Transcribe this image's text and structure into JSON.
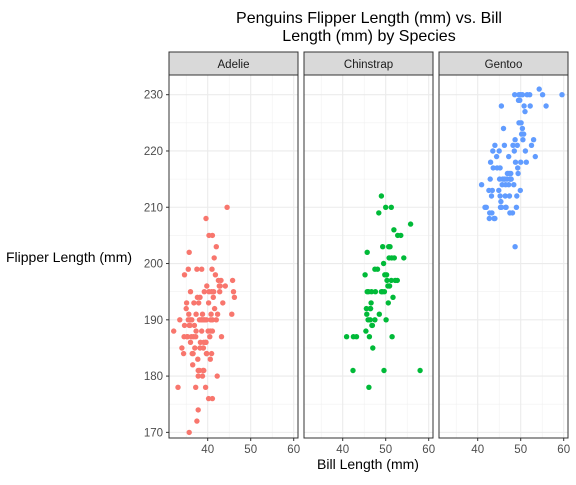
{
  "chart_data": {
    "type": "scatter",
    "title_lines": [
      "Penguins Flipper Length (mm) vs. Bill",
      "Length (mm) by Species"
    ],
    "xlabel": "Bill Length (mm)",
    "ylabel": "Flipper Length (mm)",
    "xlim": [
      31,
      61
    ],
    "ylim": [
      169,
      233.5
    ],
    "x_ticks": [
      40,
      50,
      60
    ],
    "y_ticks": [
      170,
      180,
      190,
      200,
      210,
      220,
      230
    ],
    "x_tick_labels": [
      "40",
      "50",
      "60"
    ],
    "y_tick_labels": [
      "170",
      "180",
      "190",
      "200",
      "210",
      "220",
      "230"
    ],
    "grid": true,
    "legend": "none",
    "facets": [
      {
        "name": "Adelie",
        "color": "#F8766D",
        "points": [
          [
            32.1,
            188
          ],
          [
            33.1,
            178
          ],
          [
            33.5,
            190
          ],
          [
            34.0,
            185
          ],
          [
            34.4,
            184
          ],
          [
            34.5,
            187
          ],
          [
            34.6,
            189
          ],
          [
            34.6,
            198
          ],
          [
            35.0,
            192
          ],
          [
            35.1,
            193
          ],
          [
            35.2,
            187
          ],
          [
            35.3,
            187
          ],
          [
            35.5,
            190
          ],
          [
            35.5,
            199
          ],
          [
            35.6,
            191
          ],
          [
            35.7,
            189
          ],
          [
            35.7,
            202
          ],
          [
            35.9,
            189
          ],
          [
            35.9,
            190
          ],
          [
            36.0,
            186
          ],
          [
            36.0,
            195
          ],
          [
            36.2,
            187
          ],
          [
            36.3,
            190
          ],
          [
            36.4,
            184
          ],
          [
            36.5,
            182
          ],
          [
            36.6,
            184
          ],
          [
            36.7,
            187
          ],
          [
            36.8,
            193
          ],
          [
            36.9,
            189
          ],
          [
            37.0,
            185
          ],
          [
            37.2,
            178
          ],
          [
            37.2,
            187
          ],
          [
            37.3,
            188
          ],
          [
            37.3,
            191
          ],
          [
            37.5,
            199
          ],
          [
            37.6,
            194
          ],
          [
            37.7,
            183
          ],
          [
            37.8,
            174
          ],
          [
            37.8,
            180
          ],
          [
            37.8,
            181
          ],
          [
            37.9,
            193
          ],
          [
            38.1,
            181
          ],
          [
            38.1,
            190
          ],
          [
            38.2,
            185
          ],
          [
            38.3,
            186
          ],
          [
            38.5,
            190
          ],
          [
            38.6,
            188
          ],
          [
            38.6,
            199
          ],
          [
            38.7,
            190
          ],
          [
            38.8,
            180
          ],
          [
            38.8,
            191
          ],
          [
            38.9,
            181
          ],
          [
            39.0,
            185
          ],
          [
            39.0,
            190
          ],
          [
            39.1,
            181
          ],
          [
            39.1,
            186
          ],
          [
            39.2,
            195
          ],
          [
            39.3,
            190
          ],
          [
            39.5,
            178
          ],
          [
            39.5,
            186
          ],
          [
            39.6,
            186
          ],
          [
            39.7,
            184
          ],
          [
            39.7,
            190
          ],
          [
            39.8,
            184
          ],
          [
            40.1,
            188
          ],
          [
            40.2,
            176
          ],
          [
            40.2,
            193
          ],
          [
            40.3,
            195
          ],
          [
            40.5,
            187
          ],
          [
            40.6,
            183
          ],
          [
            40.6,
            188
          ],
          [
            40.7,
            190
          ],
          [
            40.8,
            191
          ],
          [
            40.9,
            184
          ],
          [
            40.9,
            195
          ],
          [
            41.0,
            199
          ],
          [
            41.1,
            176
          ],
          [
            41.1,
            188
          ],
          [
            41.1,
            190
          ],
          [
            41.3,
            194
          ],
          [
            41.4,
            195
          ],
          [
            41.5,
            201
          ],
          [
            41.6,
            192
          ],
          [
            41.8,
            198
          ],
          [
            42.0,
            190
          ],
          [
            42.2,
            180
          ],
          [
            42.3,
            191
          ],
          [
            42.5,
            197
          ],
          [
            42.7,
            196
          ],
          [
            42.8,
            195
          ],
          [
            42.9,
            196
          ],
          [
            43.1,
            197
          ],
          [
            43.2,
            187
          ],
          [
            43.5,
            193
          ],
          [
            44.1,
            196
          ],
          [
            45.6,
            191
          ],
          [
            46.0,
            195
          ],
          [
            46.2,
            194
          ],
          [
            39.6,
            208
          ],
          [
            40.3,
            205
          ],
          [
            41.1,
            205
          ],
          [
            42.0,
            203
          ],
          [
            37.5,
            172
          ],
          [
            35.7,
            170
          ],
          [
            44.5,
            210
          ],
          [
            45.8,
            197
          ],
          [
            38.2,
            194
          ],
          [
            39.8,
            196
          ]
        ]
      },
      {
        "name": "Chinstrap",
        "color": "#00BA38",
        "points": [
          [
            40.9,
            187
          ],
          [
            42.4,
            181
          ],
          [
            42.5,
            187
          ],
          [
            43.2,
            187
          ],
          [
            45.2,
            198
          ],
          [
            45.4,
            188
          ],
          [
            45.5,
            192
          ],
          [
            45.6,
            191
          ],
          [
            45.7,
            195
          ],
          [
            45.9,
            190
          ],
          [
            46.0,
            195
          ],
          [
            46.1,
            178
          ],
          [
            46.2,
            187
          ],
          [
            46.4,
            190
          ],
          [
            46.5,
            192
          ],
          [
            46.6,
            193
          ],
          [
            46.7,
            195
          ],
          [
            46.8,
            189
          ],
          [
            46.9,
            189
          ],
          [
            47.0,
            185
          ],
          [
            47.5,
            199
          ],
          [
            47.6,
            195
          ],
          [
            48.1,
            199
          ],
          [
            48.5,
            191
          ],
          [
            49.0,
            195
          ],
          [
            49.2,
            195
          ],
          [
            49.3,
            203
          ],
          [
            49.5,
            200
          ],
          [
            49.6,
            181
          ],
          [
            49.7,
            195
          ],
          [
            49.8,
            198
          ],
          [
            50.1,
            190
          ],
          [
            50.2,
            198
          ],
          [
            50.3,
            197
          ],
          [
            50.5,
            196
          ],
          [
            50.6,
            193
          ],
          [
            50.7,
            203
          ],
          [
            50.8,
            201
          ],
          [
            50.9,
            196
          ],
          [
            51.0,
            203
          ],
          [
            51.3,
            197
          ],
          [
            51.4,
            201
          ],
          [
            51.5,
            187
          ],
          [
            51.7,
            194
          ],
          [
            51.9,
            206
          ],
          [
            52.0,
            201
          ],
          [
            52.2,
            197
          ],
          [
            52.7,
            197
          ],
          [
            52.8,
            205
          ],
          [
            53.5,
            205
          ],
          [
            54.2,
            201
          ],
          [
            55.8,
            207
          ],
          [
            58.0,
            181
          ],
          [
            45.7,
            202
          ],
          [
            46.4,
            192
          ],
          [
            47.5,
            190
          ],
          [
            48.4,
            209
          ],
          [
            49.0,
            212
          ],
          [
            50.0,
            210
          ],
          [
            51.3,
            210
          ]
        ]
      },
      {
        "name": "Gentoo",
        "color": "#619CFF",
        "points": [
          [
            40.9,
            214
          ],
          [
            41.7,
            210
          ],
          [
            42.0,
            210
          ],
          [
            42.6,
            213
          ],
          [
            42.7,
            208
          ],
          [
            42.8,
            209
          ],
          [
            42.9,
            215
          ],
          [
            43.2,
            212
          ],
          [
            43.3,
            209
          ],
          [
            43.4,
            213
          ],
          [
            43.5,
            220
          ],
          [
            43.6,
            217
          ],
          [
            43.8,
            208
          ],
          [
            44.0,
            208
          ],
          [
            44.4,
            219
          ],
          [
            44.5,
            217
          ],
          [
            44.9,
            213
          ],
          [
            45.0,
            220
          ],
          [
            45.1,
            215
          ],
          [
            45.2,
            212
          ],
          [
            45.3,
            210
          ],
          [
            45.4,
            211
          ],
          [
            45.5,
            210
          ],
          [
            45.7,
            214
          ],
          [
            45.8,
            215
          ],
          [
            46.1,
            215
          ],
          [
            46.2,
            221
          ],
          [
            46.3,
            215
          ],
          [
            46.4,
            212
          ],
          [
            46.5,
            210
          ],
          [
            46.6,
            210
          ],
          [
            46.8,
            215
          ],
          [
            46.9,
            216
          ],
          [
            47.2,
            214
          ],
          [
            47.3,
            216
          ],
          [
            47.4,
            212
          ],
          [
            47.5,
            215
          ],
          [
            47.6,
            215
          ],
          [
            47.7,
            216
          ],
          [
            47.8,
            215
          ],
          [
            48.1,
            209
          ],
          [
            48.2,
            221
          ],
          [
            48.4,
            214
          ],
          [
            48.5,
            220
          ],
          [
            48.6,
            230
          ],
          [
            48.7,
            222
          ],
          [
            49.0,
            210
          ],
          [
            49.1,
            212
          ],
          [
            49.2,
            221
          ],
          [
            49.3,
            217
          ],
          [
            49.4,
            216
          ],
          [
            49.5,
            229
          ],
          [
            49.6,
            225
          ],
          [
            49.8,
            229
          ],
          [
            49.9,
            213
          ],
          [
            50.0,
            218
          ],
          [
            50.1,
            225
          ],
          [
            50.2,
            223
          ],
          [
            50.4,
            224
          ],
          [
            50.5,
            222
          ],
          [
            50.7,
            223
          ],
          [
            50.8,
            228
          ],
          [
            51.1,
            220
          ],
          [
            51.3,
            218
          ],
          [
            51.5,
            230
          ],
          [
            52.1,
            230
          ],
          [
            52.2,
            228
          ],
          [
            53.4,
            219
          ],
          [
            54.3,
            231
          ],
          [
            55.1,
            230
          ],
          [
            55.9,
            228
          ],
          [
            59.6,
            230
          ],
          [
            48.7,
            203
          ],
          [
            46.5,
            214
          ],
          [
            45.5,
            228
          ],
          [
            49.6,
            230
          ],
          [
            50.0,
            230
          ],
          [
            47.5,
            209
          ],
          [
            45.2,
            217
          ],
          [
            50.4,
            230
          ],
          [
            53.0,
            222
          ],
          [
            52.5,
            221
          ],
          [
            51.0,
            227
          ],
          [
            46.0,
            224
          ],
          [
            44.0,
            221
          ],
          [
            43.0,
            218
          ],
          [
            47.2,
            219
          ],
          [
            48.8,
            218
          ]
        ]
      }
    ]
  }
}
